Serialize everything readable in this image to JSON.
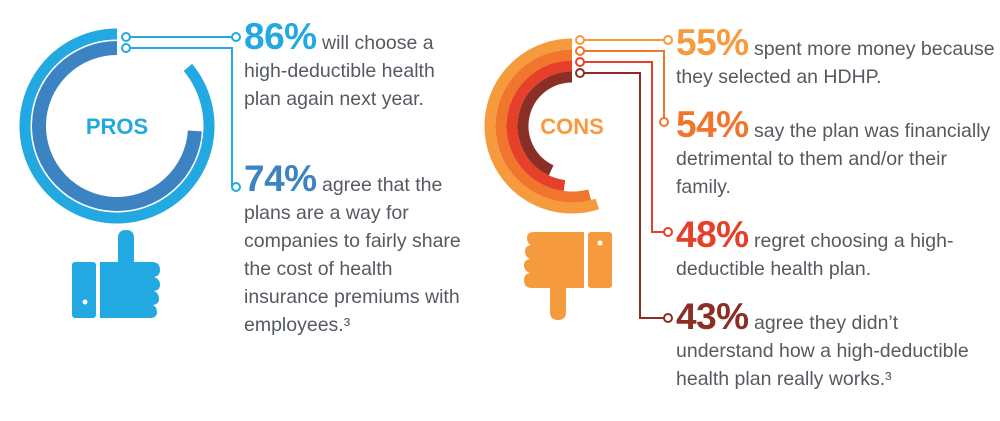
{
  "colors": {
    "pros_light": "#23a9e1",
    "pros_dark": "#3c83c4",
    "text": "#555a61",
    "cons": [
      "#f59a3d",
      "#f0752d",
      "#e6402a",
      "#8b2f26"
    ]
  },
  "pros": {
    "label": "PROS",
    "icon": "thumbs-up-icon",
    "stats": [
      {
        "value": "86%",
        "text": "will choose a high-deductible health plan again next year."
      },
      {
        "value": "74%",
        "text": "agree that the plans are a way for companies to fairly share the cost of health insurance premiums with employees.³"
      }
    ]
  },
  "cons": {
    "label": "CONS",
    "icon": "thumbs-down-icon",
    "stats": [
      {
        "value": "55%",
        "text": "spent more money because they selected an HDHP."
      },
      {
        "value": "54%",
        "text": "say the plan was financially detrimental to them and/or their family."
      },
      {
        "value": "48%",
        "text": "regret choosing a high-deductible health plan."
      },
      {
        "value": "43%",
        "text": "agree they didn’t understand how a high-deductible health plan really works.³"
      }
    ]
  },
  "chart_data": {
    "type": "radial-bar",
    "title": "",
    "groups": [
      {
        "name": "PROS",
        "categories": [
          "86%",
          "74%"
        ],
        "values": [
          86,
          74
        ]
      },
      {
        "name": "CONS",
        "categories": [
          "55%",
          "54%",
          "48%",
          "43%"
        ],
        "values": [
          55,
          54,
          48,
          43
        ]
      }
    ]
  }
}
